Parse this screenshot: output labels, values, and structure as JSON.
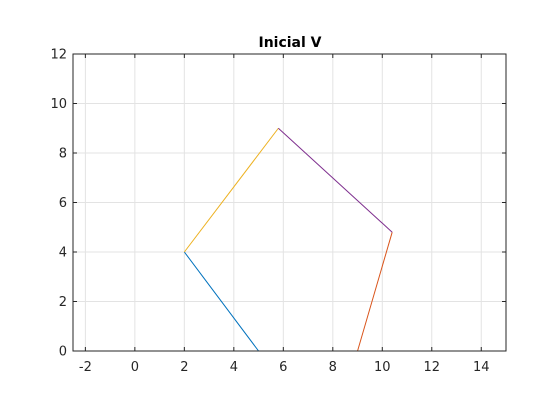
{
  "chart_data": {
    "type": "line",
    "title": "Inicial V",
    "xlabel": "",
    "ylabel": "",
    "xlim": [
      -2.5,
      15
    ],
    "ylim": [
      0,
      12
    ],
    "xticks": [
      -2,
      0,
      2,
      4,
      6,
      8,
      10,
      12,
      14
    ],
    "yticks": [
      0,
      2,
      4,
      6,
      8,
      10,
      12
    ],
    "grid": true,
    "series": [
      {
        "color": "#0072BD",
        "x": [
          2.0,
          5.0
        ],
        "y": [
          4.0,
          0.0
        ]
      },
      {
        "color": "#D95319",
        "x": [
          9.0,
          10.4
        ],
        "y": [
          0.0,
          4.8
        ]
      },
      {
        "color": "#EDB120",
        "x": [
          2.0,
          5.8
        ],
        "y": [
          4.0,
          9.0
        ]
      },
      {
        "color": "#7E2F8E",
        "x": [
          5.8,
          10.4
        ],
        "y": [
          9.0,
          4.8
        ]
      }
    ]
  }
}
